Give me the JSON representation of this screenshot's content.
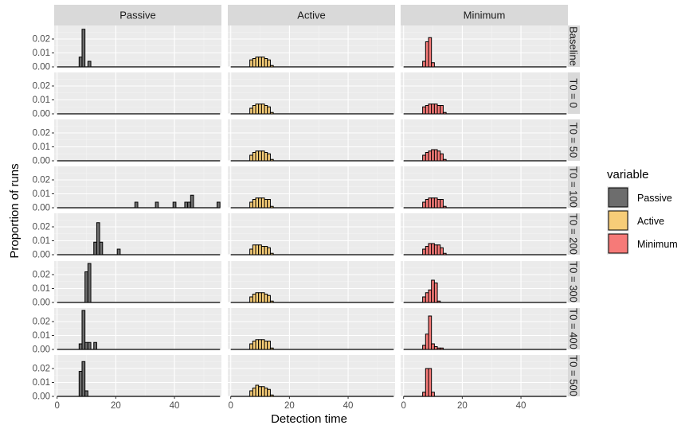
{
  "chart_data": {
    "type": "bar",
    "facet_columns": [
      "Passive",
      "Active",
      "Minimum"
    ],
    "facet_rows": [
      "Baseline",
      "T0 = 0",
      "T0 = 50",
      "T0 = 100",
      "T0 = 200",
      "T0 = 300",
      "T0 = 400",
      "T0 = 500"
    ],
    "xlabel": "Detection time",
    "ylabel": "Proportion of runs",
    "xlim": [
      -1,
      56
    ],
    "ylim": [
      0,
      0.028
    ],
    "x_ticks": [
      0,
      20,
      40
    ],
    "x_tick_labels": [
      "0",
      "20",
      "40"
    ],
    "y_ticks": [
      0,
      0.01,
      0.02
    ],
    "y_tick_labels": [
      "0.00",
      "0.01",
      "0.02"
    ],
    "grid": true,
    "bin_width": 1,
    "baseline_span": [
      0,
      55
    ],
    "legend": {
      "title": "variable",
      "position": "right",
      "entries": [
        "Passive",
        "Active",
        "Minimum"
      ]
    },
    "colors": {
      "Passive": "#6d6d6d",
      "Active": "#f7cd78",
      "Minimum": "#f67a78",
      "panel_bg": "#ebebeb",
      "strip_bg": "#d9d9d9"
    },
    "panels": {
      "Baseline": {
        "Passive": [
          [
            8,
            0.007
          ],
          [
            9,
            0.027
          ],
          [
            11,
            0.004
          ]
        ],
        "Active": [
          [
            7,
            0.005
          ],
          [
            8,
            0.006
          ],
          [
            9,
            0.007
          ],
          [
            10,
            0.007
          ],
          [
            11,
            0.007
          ],
          [
            12,
            0.006
          ],
          [
            13,
            0.005
          ],
          [
            14,
            0.001
          ]
        ],
        "Minimum": [
          [
            7,
            0.004
          ],
          [
            8,
            0.018
          ],
          [
            9,
            0.021
          ],
          [
            10,
            0.003
          ]
        ]
      },
      "T0 = 0": {
        "Passive": [],
        "Active": [
          [
            7,
            0.004
          ],
          [
            8,
            0.006
          ],
          [
            9,
            0.007
          ],
          [
            10,
            0.007
          ],
          [
            11,
            0.007
          ],
          [
            12,
            0.006
          ],
          [
            13,
            0.005
          ],
          [
            14,
            0.001
          ]
        ],
        "Minimum": [
          [
            7,
            0.005
          ],
          [
            8,
            0.006
          ],
          [
            9,
            0.007
          ],
          [
            10,
            0.007
          ],
          [
            11,
            0.007
          ],
          [
            12,
            0.006
          ],
          [
            13,
            0.006
          ],
          [
            14,
            0.001
          ]
        ]
      },
      "T0 = 50": {
        "Passive": [],
        "Active": [
          [
            7,
            0.004
          ],
          [
            8,
            0.006
          ],
          [
            9,
            0.007
          ],
          [
            10,
            0.007
          ],
          [
            11,
            0.007
          ],
          [
            12,
            0.006
          ],
          [
            13,
            0.005
          ],
          [
            14,
            0.001
          ]
        ],
        "Minimum": [
          [
            7,
            0.004
          ],
          [
            8,
            0.006
          ],
          [
            9,
            0.007
          ],
          [
            10,
            0.008
          ],
          [
            11,
            0.008
          ],
          [
            12,
            0.007
          ],
          [
            13,
            0.005
          ],
          [
            14,
            0.001
          ]
        ]
      },
      "T0 = 100": {
        "Passive": [
          [
            27,
            0.004
          ],
          [
            34,
            0.004
          ],
          [
            40,
            0.004
          ],
          [
            44,
            0.004
          ],
          [
            45,
            0.004
          ],
          [
            46,
            0.009
          ],
          [
            55,
            0.004
          ]
        ],
        "Active": [
          [
            7,
            0.004
          ],
          [
            8,
            0.006
          ],
          [
            9,
            0.007
          ],
          [
            10,
            0.007
          ],
          [
            11,
            0.007
          ],
          [
            12,
            0.006
          ],
          [
            13,
            0.006
          ],
          [
            14,
            0.001
          ]
        ],
        "Minimum": [
          [
            7,
            0.004
          ],
          [
            8,
            0.006
          ],
          [
            9,
            0.007
          ],
          [
            10,
            0.007
          ],
          [
            11,
            0.007
          ],
          [
            12,
            0.006
          ],
          [
            13,
            0.006
          ],
          [
            14,
            0.001
          ]
        ]
      },
      "T0 = 200": {
        "Passive": [
          [
            13,
            0.009
          ],
          [
            14,
            0.023
          ],
          [
            15,
            0.009
          ],
          [
            21,
            0.004
          ]
        ],
        "Active": [
          [
            7,
            0.004
          ],
          [
            8,
            0.007
          ],
          [
            9,
            0.007
          ],
          [
            10,
            0.007
          ],
          [
            11,
            0.006
          ],
          [
            12,
            0.006
          ],
          [
            13,
            0.005
          ],
          [
            14,
            0.001
          ]
        ],
        "Minimum": [
          [
            7,
            0.004
          ],
          [
            8,
            0.006
          ],
          [
            9,
            0.008
          ],
          [
            10,
            0.008
          ],
          [
            11,
            0.007
          ],
          [
            12,
            0.007
          ],
          [
            13,
            0.005
          ],
          [
            14,
            0.001
          ]
        ]
      },
      "T0 = 300": {
        "Passive": [
          [
            10,
            0.022
          ],
          [
            11,
            0.028
          ]
        ],
        "Active": [
          [
            7,
            0.004
          ],
          [
            8,
            0.006
          ],
          [
            9,
            0.007
          ],
          [
            10,
            0.007
          ],
          [
            11,
            0.007
          ],
          [
            12,
            0.006
          ],
          [
            13,
            0.005
          ],
          [
            14,
            0.001
          ]
        ],
        "Minimum": [
          [
            7,
            0.004
          ],
          [
            8,
            0.007
          ],
          [
            9,
            0.009
          ],
          [
            10,
            0.016
          ],
          [
            11,
            0.014
          ],
          [
            12,
            0.001
          ]
        ]
      },
      "T0 = 400": {
        "Passive": [
          [
            8,
            0.004
          ],
          [
            9,
            0.028
          ],
          [
            10,
            0.005
          ],
          [
            11,
            0.005
          ],
          [
            13,
            0.005
          ]
        ],
        "Active": [
          [
            7,
            0.004
          ],
          [
            8,
            0.006
          ],
          [
            9,
            0.007
          ],
          [
            10,
            0.007
          ],
          [
            11,
            0.007
          ],
          [
            12,
            0.006
          ],
          [
            13,
            0.006
          ],
          [
            14,
            0.001
          ]
        ],
        "Minimum": [
          [
            7,
            0.003
          ],
          [
            8,
            0.011
          ],
          [
            9,
            0.024
          ],
          [
            10,
            0.004
          ],
          [
            11,
            0.002
          ],
          [
            12,
            0.001
          ],
          [
            13,
            0.001
          ]
        ]
      },
      "T0 = 500": {
        "Passive": [
          [
            8,
            0.018
          ],
          [
            9,
            0.025
          ],
          [
            10,
            0.004
          ]
        ],
        "Active": [
          [
            7,
            0.004
          ],
          [
            8,
            0.006
          ],
          [
            9,
            0.008
          ],
          [
            10,
            0.007
          ],
          [
            11,
            0.007
          ],
          [
            12,
            0.006
          ],
          [
            13,
            0.005
          ],
          [
            14,
            0.001
          ]
        ],
        "Minimum": [
          [
            7,
            0.003
          ],
          [
            8,
            0.02
          ],
          [
            9,
            0.02
          ],
          [
            10,
            0.003
          ]
        ]
      }
    }
  }
}
